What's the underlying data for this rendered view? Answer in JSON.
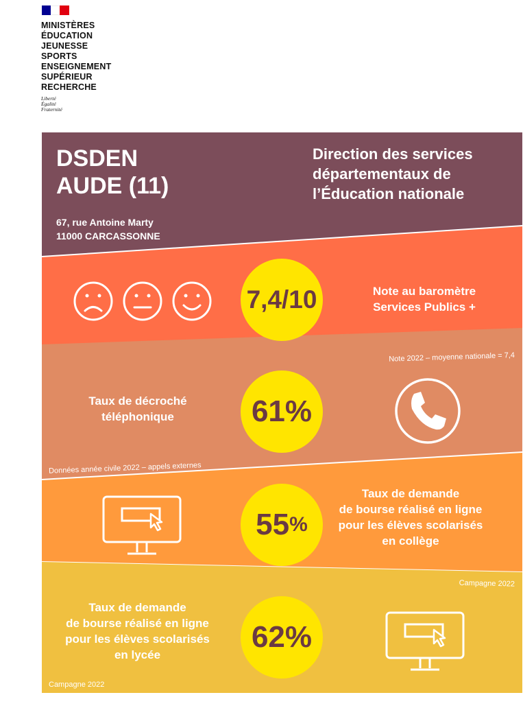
{
  "logo": {
    "lines": [
      "MINISTÈRES",
      "ÉDUCATION",
      "JEUNESSE",
      "SPORTS",
      "ENSEIGNEMENT",
      "SUPÉRIEUR",
      "RECHERCHE"
    ],
    "motto": [
      "Liberté",
      "Égalité",
      "Fraternité"
    ],
    "flag_colors": [
      "#000091",
      "#ffffff",
      "#e1000f"
    ]
  },
  "header": {
    "title_line1": "DSDEN",
    "title_line2": "AUDE (11)",
    "address_line1": "67, rue Antoine Marty",
    "address_line2": "11000 CARCASSONNE",
    "subtitle_line1": "Direction des services",
    "subtitle_line2": "départementaux de",
    "subtitle_line3": "l’Éducation nationale"
  },
  "indicators": [
    {
      "value": "7,4/10",
      "label_line1": "Note au baromètre",
      "label_line2": "Services Publics +",
      "note": "Note 2022 – moyenne nationale = 7,4",
      "icons": [
        "sad-face-icon",
        "neutral-face-icon",
        "happy-face-icon"
      ]
    },
    {
      "value": "61%",
      "label_line1": "Taux de décroché",
      "label_line2": "téléphonique",
      "note": "Données année civile 2022 – appels externes",
      "icon": "phone-icon"
    },
    {
      "value_number": "55",
      "value_unit": "%",
      "label_line1": "Taux de demande",
      "label_line2": "de bourse réalisé en ligne",
      "label_line3": "pour les élèves scolarisés",
      "label_line4": "en collège",
      "note": "Campagne 2022",
      "icon": "computer-icon"
    },
    {
      "value": "62%",
      "label_line1": "Taux de demande",
      "label_line2": "de bourse réalisé en ligne",
      "label_line3": "pour les élèves scolarisés",
      "label_line4": "en lycée",
      "note": "Campagne 2022",
      "icon": "computer-icon"
    }
  ],
  "colors": {
    "header": "#7c4d5a",
    "band1": "#ff6e47",
    "band2": "#e08b63",
    "band3": "#ff9a3c",
    "band4": "#f0c040",
    "circle": "#ffe500",
    "value_text": "#6b3a43"
  }
}
